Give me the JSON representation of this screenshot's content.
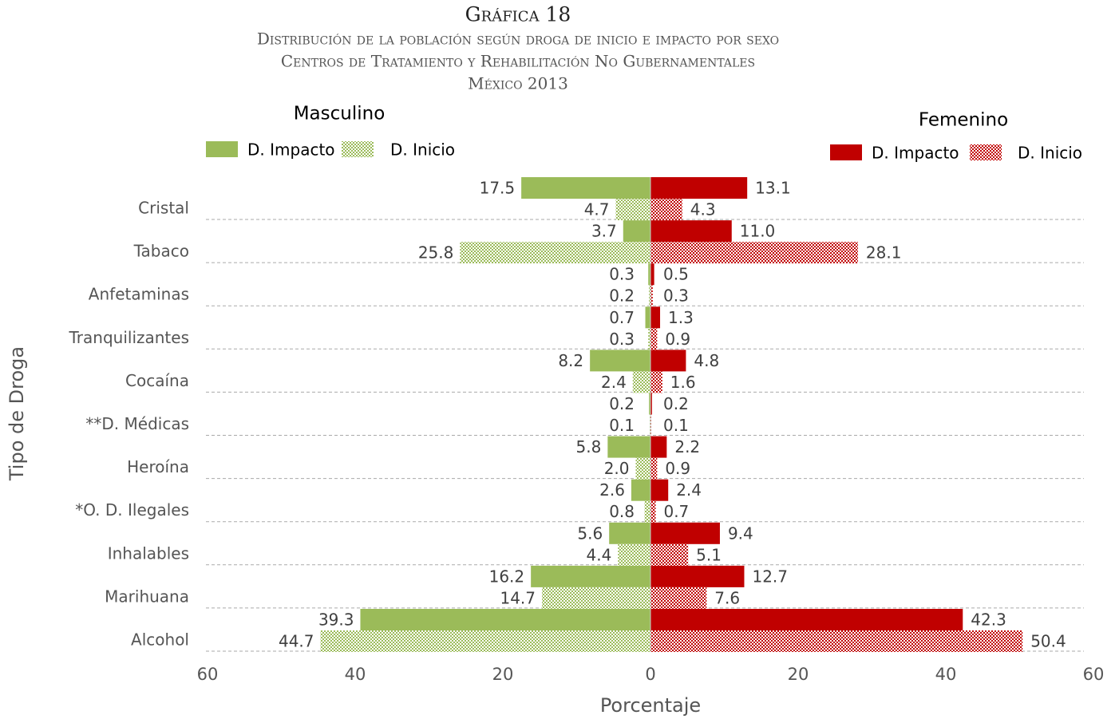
{
  "title": "Gráfica 18",
  "subtitle": [
    "Distribución de la población según droga de inicio e impacto por sexo",
    "Centros de Tratamiento y Rehabilitación No Gubernamentales",
    "México 2013"
  ],
  "x_label": "Porcentaje",
  "y_label": "Tipo de Droga",
  "chart_data": [
    {
      "type": "bar",
      "orientation": "horizontal",
      "title": "Masculino",
      "categories": [
        "Cristal",
        "Tabaco",
        "Anfetaminas",
        "Tranquilizantes",
        "Cocaína",
        "**D. Médicas",
        "Heroína",
        "*O. D. Ilegales",
        "Inhalables",
        "Marihuana",
        "Alcohol"
      ],
      "xlim": [
        60,
        0
      ],
      "xticks": [
        60,
        40,
        20,
        0
      ],
      "series": [
        {
          "name": "D. Impacto",
          "color": "#9bbb59",
          "pattern": false,
          "values": [
            17.5,
            3.7,
            0.3,
            0.7,
            8.2,
            0.2,
            5.8,
            2.6,
            5.6,
            16.2,
            39.3
          ],
          "value_labels": [
            "17.5",
            "3.7",
            "0.3",
            "0.7",
            "8.2",
            "0.2",
            "5.8",
            "2.6",
            "5.6",
            "16.2",
            "39.3"
          ]
        },
        {
          "name": "D. Inicio",
          "color": "#9bbb59",
          "pattern": true,
          "values": [
            4.7,
            25.8,
            0.2,
            0.3,
            2.4,
            0.1,
            2.0,
            0.8,
            4.4,
            14.7,
            44.7
          ],
          "value_labels": [
            "4.7",
            "25.8",
            "0.2",
            "0.3",
            "2.4",
            "0.1",
            "2.0",
            "0.8",
            "4.4",
            "14.7",
            "44.7"
          ]
        }
      ]
    },
    {
      "type": "bar",
      "orientation": "horizontal",
      "title": "Femenino",
      "xlim": [
        0,
        60
      ],
      "xticks": [
        20,
        40,
        60
      ],
      "series": [
        {
          "name": "D. Impacto",
          "color": "#c00000",
          "pattern": false,
          "values": [
            13.1,
            11.0,
            0.5,
            1.3,
            4.8,
            0.2,
            2.2,
            2.4,
            9.4,
            12.7,
            42.3
          ],
          "value_labels": [
            "13.1",
            "11.0",
            "0.5",
            "1.3",
            "4.8",
            "0.2",
            "2.2",
            "2.4",
            "9.4",
            "12.7",
            "42.3"
          ]
        },
        {
          "name": "D. Inicio",
          "color": "#c00000",
          "pattern": true,
          "values": [
            4.3,
            28.1,
            0.3,
            0.9,
            1.6,
            0.1,
            0.9,
            0.7,
            5.1,
            7.6,
            50.4
          ],
          "value_labels": [
            "4.3",
            "28.1",
            "0.3",
            "0.9",
            "1.6",
            "0.1",
            "0.9",
            "0.7",
            "5.1",
            "7.6",
            "50.4"
          ]
        }
      ]
    }
  ]
}
